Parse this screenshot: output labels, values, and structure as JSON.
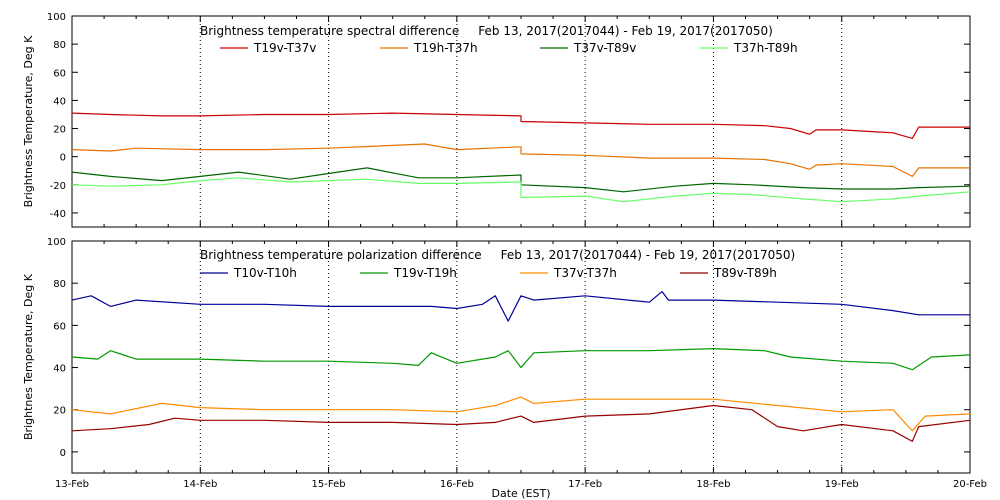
{
  "chart_data": [
    {
      "type": "line",
      "title": "Brightness temperature spectral difference     Feb 13, 2017(2017044) - Feb 19, 2017(2017050)",
      "xlabel": "",
      "ylabel": "Brightness Temperature, Deg K",
      "ylim": [
        -50,
        100
      ],
      "yticks": [
        -40,
        -20,
        0,
        20,
        40,
        60,
        80,
        100
      ],
      "xlim": [
        0,
        7
      ],
      "x_tick_labels": [
        "13-Feb",
        "14-Feb",
        "15-Feb",
        "16-Feb",
        "17-Feb",
        "18-Feb",
        "19-Feb",
        "20-Feb"
      ],
      "grid": "vertical dotted lines at each day",
      "legend": "top, single row",
      "series": [
        {
          "name": "T19v-T37v",
          "color": "#cc0000",
          "x": [
            0,
            0.3,
            0.7,
            1.0,
            1.5,
            2.0,
            2.5,
            3.0,
            3.5,
            3.5,
            4.0,
            4.5,
            5.0,
            5.4,
            5.6,
            5.75,
            5.8,
            6.0,
            6.4,
            6.55,
            6.6,
            7.0
          ],
          "values": [
            31,
            30,
            29,
            29,
            30,
            30,
            31,
            30,
            29,
            25,
            24,
            23,
            23,
            22,
            20,
            16,
            19,
            19,
            17,
            13,
            21,
            21
          ]
        },
        {
          "name": "T19h-T37h",
          "color": "#e67300",
          "x": [
            0,
            0.3,
            0.5,
            1.0,
            1.5,
            2.0,
            2.5,
            2.75,
            3.0,
            3.5,
            3.5,
            4.0,
            4.5,
            5.0,
            5.4,
            5.6,
            5.75,
            5.8,
            6.0,
            6.4,
            6.55,
            6.6,
            7.0
          ],
          "values": [
            5,
            4,
            6,
            5,
            5,
            6,
            8,
            9,
            5,
            7,
            2,
            1,
            -1,
            -1,
            -2,
            -5,
            -9,
            -6,
            -5,
            -7,
            -14,
            -8,
            -8
          ]
        },
        {
          "name": "T37v-T89v",
          "color": "#006600",
          "x": [
            0,
            0.3,
            0.7,
            1.0,
            1.3,
            1.7,
            2.0,
            2.3,
            2.7,
            3.0,
            3.5,
            3.5,
            4.0,
            4.3,
            4.7,
            5.0,
            5.3,
            5.7,
            6.0,
            6.4,
            6.6,
            7.0
          ],
          "values": [
            -11,
            -14,
            -17,
            -14,
            -11,
            -16,
            -12,
            -8,
            -15,
            -15,
            -13,
            -20,
            -22,
            -25,
            -21,
            -19,
            -20,
            -22,
            -23,
            -23,
            -22,
            -21
          ]
        },
        {
          "name": "T37h-T89h",
          "color": "#66ff66",
          "x": [
            0,
            0.3,
            0.7,
            1.0,
            1.3,
            1.7,
            2.0,
            2.3,
            2.7,
            3.0,
            3.5,
            3.5,
            4.0,
            4.3,
            4.7,
            5.0,
            5.3,
            5.7,
            6.0,
            6.4,
            6.6,
            7.0
          ],
          "values": [
            -20,
            -21,
            -20,
            -17,
            -15,
            -18,
            -17,
            -16,
            -19,
            -19,
            -18,
            -29,
            -28,
            -32,
            -28,
            -26,
            -27,
            -30,
            -32,
            -30,
            -28,
            -25
          ]
        }
      ]
    },
    {
      "type": "line",
      "title": "Brightness temperature polarization difference     Feb 13, 2017(2017044) - Feb 19, 2017(2017050)",
      "xlabel": "Date (EST)",
      "ylabel": "Brightnes Temperature, Deg K",
      "ylim": [
        -10,
        100
      ],
      "yticks": [
        0,
        20,
        40,
        60,
        80,
        100
      ],
      "xlim": [
        0,
        7
      ],
      "x_tick_labels": [
        "13-Feb",
        "14-Feb",
        "15-Feb",
        "16-Feb",
        "17-Feb",
        "18-Feb",
        "19-Feb",
        "20-Feb"
      ],
      "grid": "vertical dotted lines at each day",
      "legend": "top, single row",
      "series": [
        {
          "name": "T10v-T10h",
          "color": "#000099",
          "x": [
            0,
            0.15,
            0.3,
            0.5,
            1.0,
            1.5,
            2.0,
            2.5,
            2.8,
            3.0,
            3.2,
            3.3,
            3.4,
            3.5,
            3.6,
            4.0,
            4.5,
            4.6,
            4.65,
            5.0,
            5.5,
            6.0,
            6.4,
            6.6,
            7.0
          ],
          "values": [
            72,
            74,
            69,
            72,
            70,
            70,
            69,
            69,
            69,
            68,
            70,
            74,
            62,
            74,
            72,
            74,
            71,
            76,
            72,
            72,
            71,
            70,
            67,
            65,
            65
          ]
        },
        {
          "name": "T19v-T19h",
          "color": "#009900",
          "x": [
            0,
            0.2,
            0.3,
            0.5,
            1.0,
            1.5,
            2.0,
            2.5,
            2.7,
            2.8,
            3.0,
            3.3,
            3.4,
            3.5,
            3.6,
            4.0,
            4.5,
            5.0,
            5.4,
            5.6,
            6.0,
            6.4,
            6.55,
            6.7,
            7.0
          ],
          "values": [
            45,
            44,
            48,
            44,
            44,
            43,
            43,
            42,
            41,
            47,
            42,
            45,
            48,
            40,
            47,
            48,
            48,
            49,
            48,
            45,
            43,
            42,
            39,
            45,
            46
          ]
        },
        {
          "name": "T37v-T37h",
          "color": "#ff8c00",
          "x": [
            0,
            0.3,
            0.7,
            1.0,
            1.5,
            2.0,
            2.5,
            3.0,
            3.3,
            3.5,
            3.6,
            4.0,
            4.5,
            5.0,
            5.5,
            6.0,
            6.4,
            6.55,
            6.65,
            7.0
          ],
          "values": [
            20,
            18,
            23,
            21,
            20,
            20,
            20,
            19,
            22,
            26,
            23,
            25,
            25,
            25,
            22,
            19,
            20,
            10,
            17,
            18
          ]
        },
        {
          "name": "T89v-T89h",
          "color": "#990000",
          "x": [
            0,
            0.3,
            0.6,
            0.8,
            1.0,
            1.5,
            2.0,
            2.5,
            3.0,
            3.3,
            3.5,
            3.6,
            4.0,
            4.5,
            5.0,
            5.3,
            5.5,
            5.7,
            6.0,
            6.4,
            6.55,
            6.6,
            7.0
          ],
          "values": [
            10,
            11,
            13,
            16,
            15,
            15,
            14,
            14,
            13,
            14,
            17,
            14,
            17,
            18,
            22,
            20,
            12,
            10,
            13,
            10,
            5,
            12,
            15
          ]
        }
      ]
    }
  ]
}
